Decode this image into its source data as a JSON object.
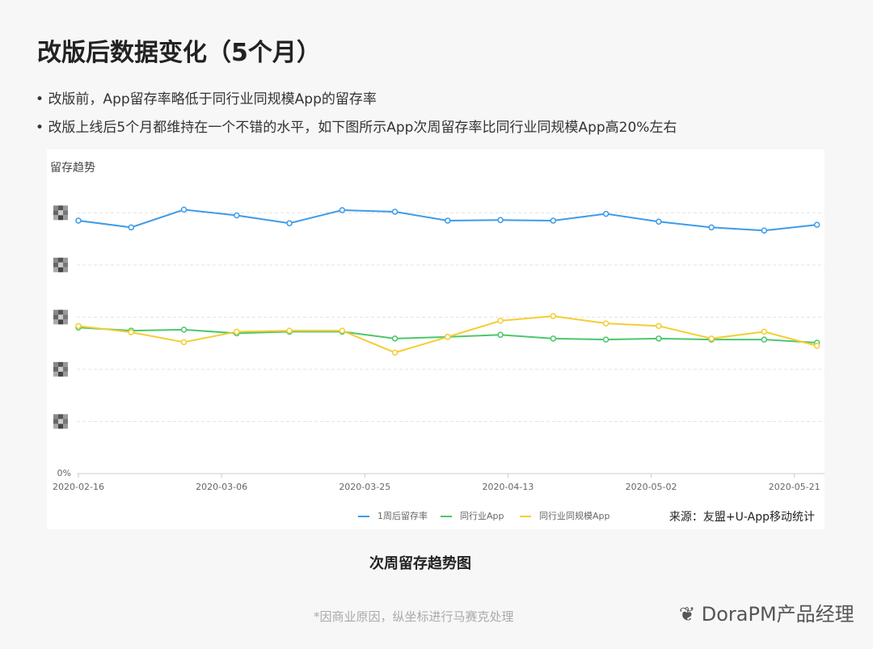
{
  "title": "改版后数据变化（5个月）",
  "bullets": [
    "改版前，App留存率略低于同行业同规模App的留存率",
    "改版上线后5个月都维持在一个不错的水平，如下图所示App次周留存率比同行业同规模App高20%左右"
  ],
  "caption": "次周留存趋势图",
  "note": "*因商业原因，纵坐标进行马赛克处理",
  "watermark": "DoraPM产品经理",
  "chart_data": {
    "type": "line",
    "title": "留存趋势",
    "source": "来源：友盟+U-App移动统计",
    "x": [
      "2020-02-16",
      "2020-02-23",
      "2020-03-01",
      "2020-03-08",
      "2020-03-15",
      "2020-03-22",
      "2020-03-29",
      "2020-04-05",
      "2020-04-12",
      "2020-04-19",
      "2020-04-26",
      "2020-05-03",
      "2020-05-10",
      "2020-05-17",
      "2020-05-24"
    ],
    "xlim": [
      "2020-02-16",
      "2020-05-25"
    ],
    "xticks": [
      "2020-02-16",
      "2020-03-06",
      "2020-03-25",
      "2020-04-13",
      "2020-05-02",
      "2020-05-21"
    ],
    "ylim": [
      0,
      55
    ],
    "yticks": [
      {
        "value": 0,
        "label": "0%"
      }
    ],
    "ygrid": [
      10,
      20,
      30,
      40,
      50
    ],
    "series": [
      {
        "name": "1周后留存率",
        "color": "#3d9be9",
        "values": [
          48.5,
          47.2,
          50.6,
          49.5,
          48.0,
          50.5,
          50.2,
          48.5,
          48.6,
          48.5,
          49.8,
          48.3,
          47.2,
          46.6,
          47.7
        ]
      },
      {
        "name": "同行业App",
        "color": "#4cc76a",
        "values": [
          28.0,
          27.4,
          27.6,
          26.9,
          27.2,
          27.2,
          25.9,
          26.2,
          26.6,
          25.9,
          25.7,
          25.9,
          25.7,
          25.7,
          25.1
        ]
      },
      {
        "name": "同行业同规模App",
        "color": "#f5cd35",
        "values": [
          28.3,
          27.1,
          25.2,
          27.2,
          27.4,
          27.4,
          23.2,
          26.2,
          29.3,
          30.2,
          28.8,
          28.3,
          25.9,
          27.2,
          24.5
        ]
      }
    ]
  }
}
